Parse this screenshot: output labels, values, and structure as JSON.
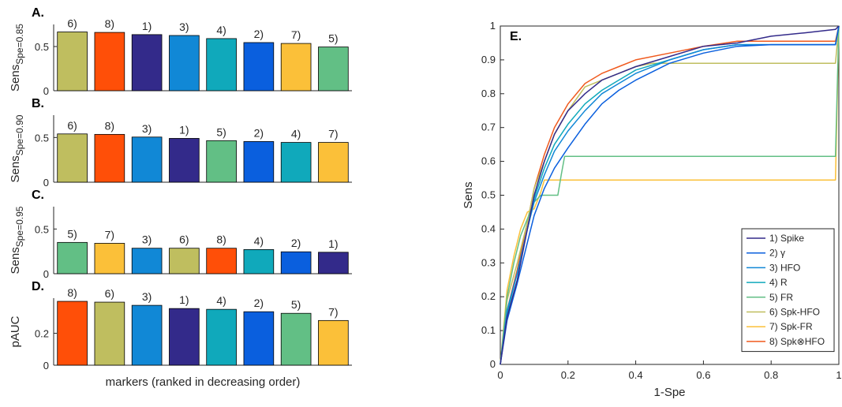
{
  "chart_data": [
    {
      "panel": "A.",
      "type": "bar",
      "ylabel": "Sens",
      "ylabel_sub": "Spe=0.85",
      "ylim": [
        0,
        0.75
      ],
      "yticks": [
        0,
        0.5
      ],
      "categories": [
        "6)",
        "8)",
        "1)",
        "3)",
        "4)",
        "2)",
        "7)",
        "5)"
      ],
      "values": [
        0.665,
        0.66,
        0.635,
        0.625,
        0.59,
        0.545,
        0.535,
        0.495
      ]
    },
    {
      "panel": "B.",
      "type": "bar",
      "ylabel": "Sens",
      "ylabel_sub": "Spe=0.90",
      "ylim": [
        0,
        0.75
      ],
      "yticks": [
        0,
        0.5
      ],
      "categories": [
        "6)",
        "8)",
        "3)",
        "1)",
        "5)",
        "2)",
        "4)",
        "7)"
      ],
      "values": [
        0.54,
        0.535,
        0.505,
        0.49,
        0.465,
        0.455,
        0.445,
        0.445
      ]
    },
    {
      "panel": "C.",
      "type": "bar",
      "ylabel": "Sens",
      "ylabel_sub": "Spe=0.95",
      "ylim": [
        0,
        0.75
      ],
      "yticks": [
        0,
        0.5
      ],
      "categories": [
        "5)",
        "7)",
        "3)",
        "6)",
        "8)",
        "4)",
        "2)",
        "1)"
      ],
      "values": [
        0.35,
        0.34,
        0.285,
        0.285,
        0.285,
        0.27,
        0.245,
        0.24
      ]
    },
    {
      "panel": "D.",
      "type": "bar",
      "ylabel": "pAUC",
      "ylim": [
        0,
        0.42
      ],
      "yticks": [
        0,
        0.2
      ],
      "xlabel": "markers (ranked in decreasing order)",
      "categories": [
        "8)",
        "6)",
        "3)",
        "1)",
        "4)",
        "2)",
        "5)",
        "7)"
      ],
      "values": [
        0.4,
        0.395,
        0.375,
        0.355,
        0.35,
        0.335,
        0.325,
        0.28
      ]
    },
    {
      "panel": "E.",
      "type": "line",
      "xlabel": "1-Spe",
      "ylabel": "Sens",
      "xlim": [
        0,
        1
      ],
      "ylim": [
        0,
        1
      ],
      "xticks": [
        0,
        0.2,
        0.4,
        0.6,
        0.8,
        1
      ],
      "yticks": [
        0,
        0.1,
        0.2,
        0.3,
        0.4,
        0.5,
        0.6,
        0.7,
        0.8,
        0.9,
        1
      ],
      "legend_position": "bottom-right",
      "series": [
        {
          "key": "1)",
          "name": "1) Spike",
          "points": [
            [
              0,
              0
            ],
            [
              0.02,
              0.14
            ],
            [
              0.05,
              0.25
            ],
            [
              0.08,
              0.4
            ],
            [
              0.1,
              0.5
            ],
            [
              0.13,
              0.6
            ],
            [
              0.16,
              0.68
            ],
            [
              0.2,
              0.75
            ],
            [
              0.25,
              0.8
            ],
            [
              0.3,
              0.84
            ],
            [
              0.35,
              0.86
            ],
            [
              0.4,
              0.88
            ],
            [
              0.5,
              0.91
            ],
            [
              0.6,
              0.94
            ],
            [
              0.7,
              0.95
            ],
            [
              0.8,
              0.97
            ],
            [
              0.9,
              0.98
            ],
            [
              0.99,
              0.99
            ],
            [
              1,
              1
            ]
          ]
        },
        {
          "key": "2)",
          "name": "2) γ",
          "points": [
            [
              0,
              0
            ],
            [
              0.02,
              0.13
            ],
            [
              0.05,
              0.24
            ],
            [
              0.08,
              0.36
            ],
            [
              0.1,
              0.44
            ],
            [
              0.13,
              0.52
            ],
            [
              0.16,
              0.58
            ],
            [
              0.2,
              0.64
            ],
            [
              0.25,
              0.71
            ],
            [
              0.3,
              0.77
            ],
            [
              0.35,
              0.81
            ],
            [
              0.4,
              0.84
            ],
            [
              0.5,
              0.89
            ],
            [
              0.6,
              0.92
            ],
            [
              0.7,
              0.94
            ],
            [
              0.8,
              0.945
            ],
            [
              0.9,
              0.945
            ],
            [
              0.99,
              0.945
            ],
            [
              1,
              1
            ]
          ]
        },
        {
          "key": "3)",
          "name": "3) HFO",
          "points": [
            [
              0,
              0
            ],
            [
              0.02,
              0.16
            ],
            [
              0.05,
              0.27
            ],
            [
              0.08,
              0.4
            ],
            [
              0.1,
              0.48
            ],
            [
              0.13,
              0.56
            ],
            [
              0.16,
              0.63
            ],
            [
              0.2,
              0.69
            ],
            [
              0.25,
              0.75
            ],
            [
              0.3,
              0.8
            ],
            [
              0.35,
              0.83
            ],
            [
              0.4,
              0.86
            ],
            [
              0.5,
              0.9
            ],
            [
              0.6,
              0.93
            ],
            [
              0.7,
              0.945
            ],
            [
              0.8,
              0.945
            ],
            [
              0.9,
              0.945
            ],
            [
              0.99,
              0.945
            ],
            [
              1,
              1
            ]
          ]
        },
        {
          "key": "4)",
          "name": "4) R",
          "points": [
            [
              0,
              0
            ],
            [
              0.02,
              0.15
            ],
            [
              0.05,
              0.27
            ],
            [
              0.08,
              0.4
            ],
            [
              0.1,
              0.49
            ],
            [
              0.13,
              0.58
            ],
            [
              0.16,
              0.65
            ],
            [
              0.2,
              0.71
            ],
            [
              0.25,
              0.77
            ],
            [
              0.3,
              0.81
            ],
            [
              0.35,
              0.84
            ],
            [
              0.4,
              0.87
            ],
            [
              0.5,
              0.9
            ],
            [
              0.6,
              0.93
            ],
            [
              0.7,
              0.945
            ],
            [
              0.8,
              0.945
            ],
            [
              0.9,
              0.945
            ],
            [
              0.99,
              0.945
            ],
            [
              1,
              1
            ]
          ]
        },
        {
          "key": "5)",
          "name": "5) FR",
          "points": [
            [
              0,
              0
            ],
            [
              0.02,
              0.2
            ],
            [
              0.04,
              0.3
            ],
            [
              0.06,
              0.38
            ],
            [
              0.08,
              0.43
            ],
            [
              0.1,
              0.48
            ],
            [
              0.12,
              0.5
            ],
            [
              0.17,
              0.5
            ],
            [
              0.18,
              0.56
            ],
            [
              0.19,
              0.615
            ],
            [
              0.99,
              0.615
            ],
            [
              1,
              1
            ]
          ]
        },
        {
          "key": "6)",
          "name": "6) Spk-HFO",
          "points": [
            [
              0,
              0
            ],
            [
              0.02,
              0.19
            ],
            [
              0.05,
              0.3
            ],
            [
              0.08,
              0.42
            ],
            [
              0.1,
              0.52
            ],
            [
              0.13,
              0.6
            ],
            [
              0.16,
              0.68
            ],
            [
              0.2,
              0.75
            ],
            [
              0.25,
              0.82
            ],
            [
              0.3,
              0.84
            ],
            [
              0.35,
              0.86
            ],
            [
              0.4,
              0.88
            ],
            [
              0.45,
              0.89
            ],
            [
              0.5,
              0.89
            ],
            [
              0.7,
              0.89
            ],
            [
              0.9,
              0.89
            ],
            [
              0.99,
              0.89
            ],
            [
              1,
              1
            ]
          ]
        },
        {
          "key": "7)",
          "name": "7) Spk-FR",
          "points": [
            [
              0,
              0
            ],
            [
              0.02,
              0.22
            ],
            [
              0.04,
              0.32
            ],
            [
              0.06,
              0.4
            ],
            [
              0.08,
              0.45
            ],
            [
              0.1,
              0.46
            ],
            [
              0.12,
              0.51
            ],
            [
              0.13,
              0.545
            ],
            [
              0.99,
              0.545
            ],
            [
              1,
              1
            ]
          ]
        },
        {
          "key": "8)",
          "name": "8) Spk⊗HFO",
          "points": [
            [
              0,
              0
            ],
            [
              0.02,
              0.16
            ],
            [
              0.05,
              0.28
            ],
            [
              0.08,
              0.42
            ],
            [
              0.1,
              0.52
            ],
            [
              0.13,
              0.62
            ],
            [
              0.16,
              0.7
            ],
            [
              0.2,
              0.77
            ],
            [
              0.25,
              0.83
            ],
            [
              0.3,
              0.86
            ],
            [
              0.35,
              0.88
            ],
            [
              0.4,
              0.9
            ],
            [
              0.5,
              0.92
            ],
            [
              0.6,
              0.94
            ],
            [
              0.7,
              0.955
            ],
            [
              0.8,
              0.955
            ],
            [
              0.9,
              0.955
            ],
            [
              0.99,
              0.955
            ],
            [
              1,
              1
            ]
          ]
        }
      ]
    }
  ],
  "colors": {
    "1)": "#332a8a",
    "2)": "#0a5fde",
    "3)": "#1188d6",
    "4)": "#10a9bb",
    "5)": "#62bf85",
    "6)": "#bfbe5f",
    "7)": "#fbc039",
    "8)": "#ff4f08"
  },
  "line_colors": {
    "1)": "#332a8a",
    "2)": "#0a5fde",
    "3)": "#1188d6",
    "4)": "#10a9bb",
    "5)": "#62bf85",
    "6)": "#bfbe5f",
    "7)": "#fbc039",
    "8)": "#f05a1e"
  }
}
